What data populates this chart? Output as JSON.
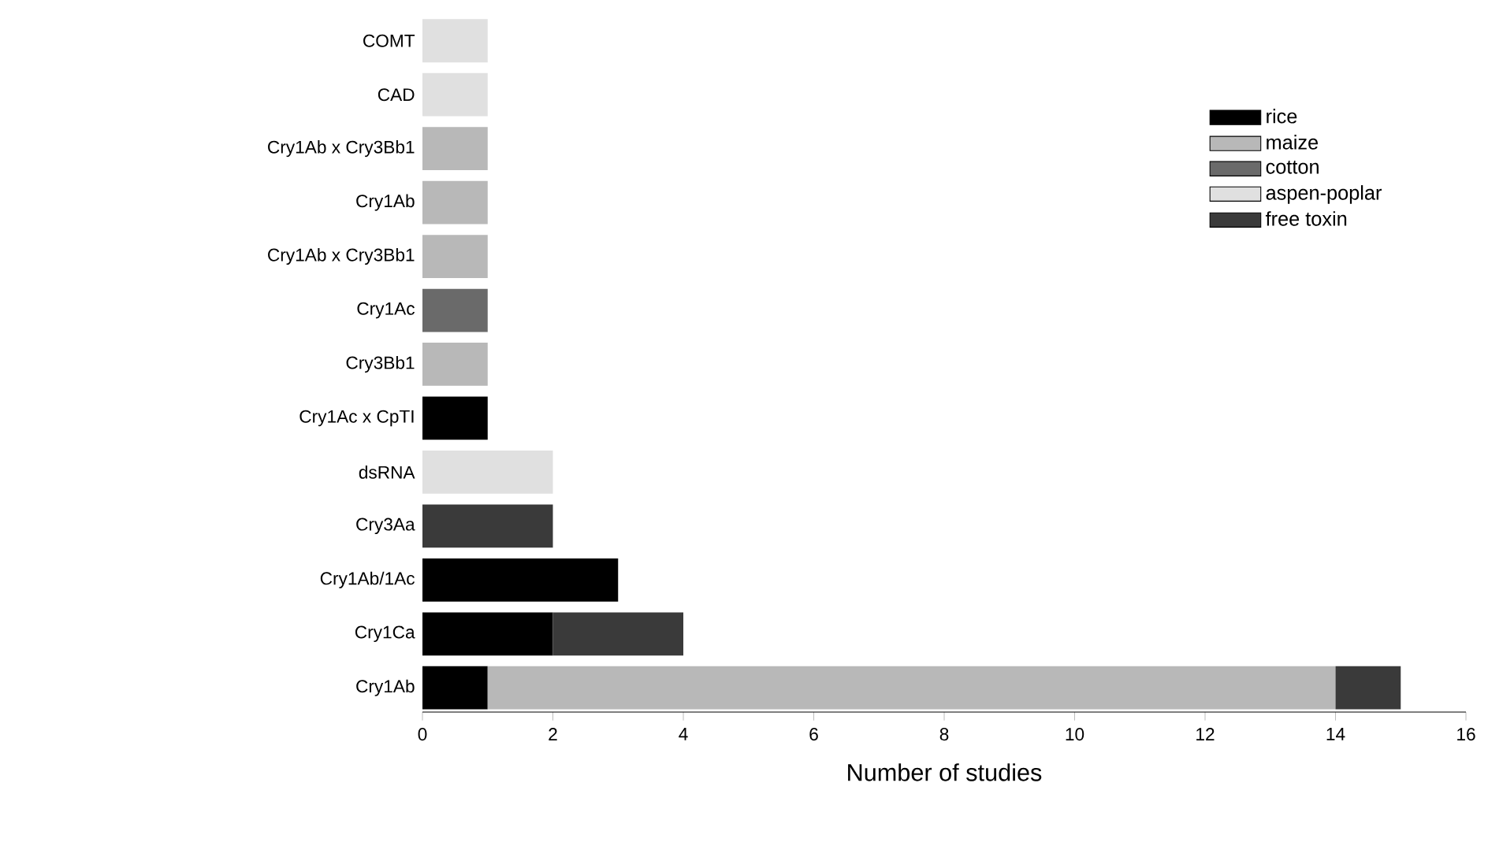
{
  "chart_data": {
    "type": "bar",
    "orientation": "horizontal",
    "stacked": true,
    "categories": [
      "COMT",
      "CAD",
      "Cry1Ab x Cry3Bb1",
      "Cry1Ab",
      "Cry1Ab x Cry3Bb1",
      "Cry1Ac",
      "Cry3Bb1",
      "Cry1Ac x CpTI",
      "dsRNA",
      "Cry3Aa",
      "Cry1Ab/1Ac",
      "Cry1Ca",
      "Cry1Ab"
    ],
    "series": [
      {
        "name": "rice",
        "color": "#000000",
        "values": [
          null,
          null,
          null,
          null,
          null,
          null,
          null,
          1,
          null,
          null,
          3,
          2,
          1
        ]
      },
      {
        "name": "maize",
        "color": "#b8b8b8",
        "values": [
          null,
          null,
          1,
          1,
          1,
          null,
          1,
          null,
          null,
          null,
          null,
          null,
          13
        ]
      },
      {
        "name": "cotton",
        "color": "#6a6a6a",
        "values": [
          null,
          null,
          null,
          null,
          null,
          1,
          null,
          null,
          null,
          null,
          null,
          null,
          null
        ]
      },
      {
        "name": "aspen-poplar",
        "color": "#e0e0e0",
        "values": [
          1,
          1,
          null,
          null,
          null,
          null,
          null,
          null,
          2,
          null,
          null,
          null,
          null
        ]
      },
      {
        "name": "free toxin",
        "color": "#3a3a3a",
        "values": [
          null,
          null,
          null,
          null,
          null,
          null,
          null,
          null,
          null,
          2,
          null,
          2,
          1
        ]
      }
    ],
    "xlabel": "Number of studies",
    "xlim": [
      0,
      16
    ],
    "xticks": [
      0,
      2,
      4,
      6,
      8,
      10,
      12,
      14,
      16
    ],
    "legend": "top right",
    "grid": false
  }
}
